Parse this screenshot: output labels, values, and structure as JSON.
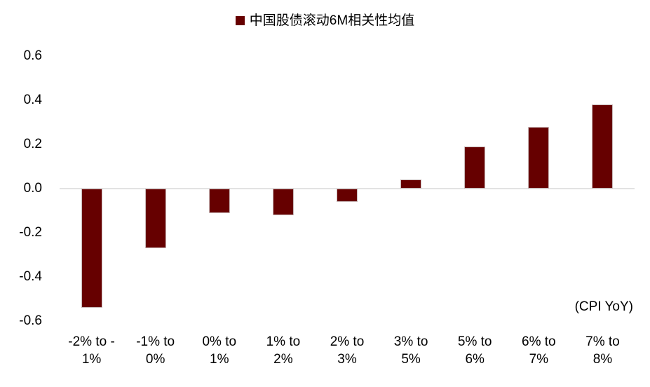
{
  "legend": {
    "label": "中国股债滚动6M相关性均值",
    "marker_color": "#660000"
  },
  "annotation": "(CPI YoY)",
  "chart_data": {
    "type": "bar",
    "title": "中国股债滚动6M相关性均值",
    "categories": [
      "-2% to -1%",
      "-1% to 0%",
      "0% to 1%",
      "1% to 2%",
      "2% to 3%",
      "3% to 5%",
      "5% to 6%",
      "6% to 7%",
      "7% to 8%"
    ],
    "category_lines": [
      [
        "-2% to -",
        "1%"
      ],
      [
        "-1% to",
        "0%"
      ],
      [
        "0% to",
        "1%"
      ],
      [
        "1% to",
        "2%"
      ],
      [
        "2% to",
        "3%"
      ],
      [
        "3% to",
        "5%"
      ],
      [
        "5% to",
        "6%"
      ],
      [
        "6% to",
        "7%"
      ],
      [
        "7% to",
        "8%"
      ]
    ],
    "values": [
      -0.54,
      -0.27,
      -0.11,
      -0.12,
      -0.06,
      0.04,
      0.19,
      0.28,
      0.38
    ],
    "xlabel": "(CPI YoY)",
    "ylabel": "",
    "ylim": [
      -0.6,
      0.6
    ],
    "yticks": [
      0.6,
      0.4,
      0.2,
      0.0,
      -0.2,
      -0.4,
      -0.6
    ],
    "bar_color": "#660000",
    "bar_border_color": "#c9b9b9",
    "zero_line_color": "#e2e2e2",
    "grid": false,
    "legend_position": "top-center"
  }
}
